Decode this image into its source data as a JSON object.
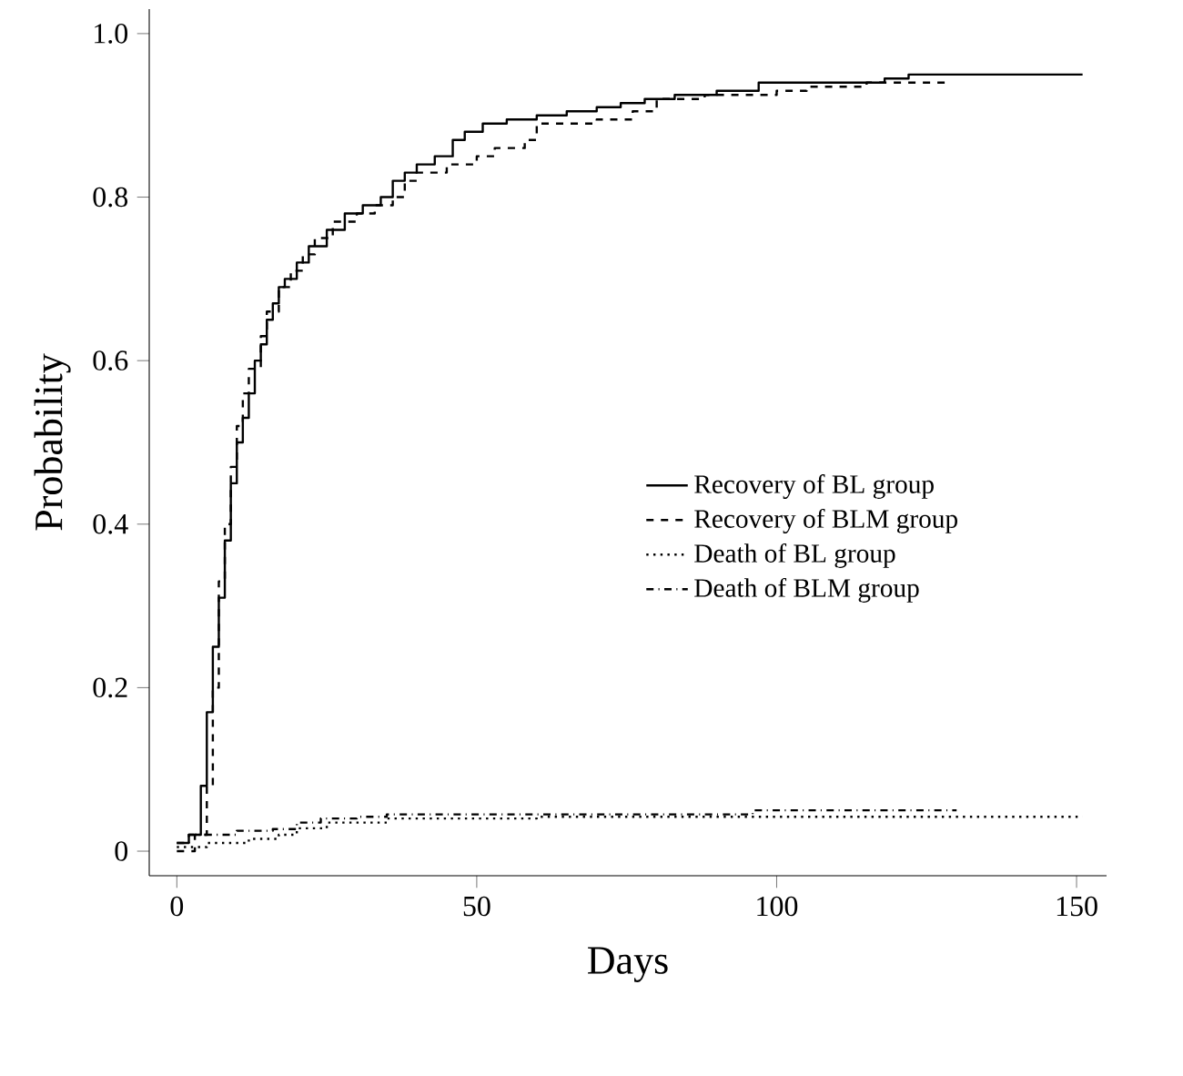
{
  "chart_data": {
    "type": "step",
    "xlabel": "Days",
    "ylabel": "Probability",
    "xlim": [
      -4.6,
      155
    ],
    "ylim": [
      -0.03,
      1.03
    ],
    "xticks": [
      0,
      50,
      100,
      150
    ],
    "yticks": [
      {
        "value": 0,
        "label": "0"
      },
      {
        "value": 0.2,
        "label": "0.2"
      },
      {
        "value": 0.4,
        "label": "0.4"
      },
      {
        "value": 0.6,
        "label": "0.6"
      },
      {
        "value": 0.8,
        "label": "0.8"
      },
      {
        "value": 1.0,
        "label": "1.0"
      }
    ],
    "grid": false,
    "legend": "right",
    "marker": "none",
    "series": [
      {
        "name": "Recovery of BL group",
        "color": "#000000",
        "line_style": "solid",
        "x": [
          0,
          2,
          4,
          5,
          6,
          7,
          8,
          9,
          10,
          11,
          12,
          13,
          14,
          15,
          16,
          17,
          18,
          20,
          22,
          25,
          28,
          31,
          34,
          36,
          38,
          40,
          43,
          46,
          48,
          51,
          55,
          60,
          65,
          70,
          74,
          78,
          83,
          90,
          97,
          118,
          122,
          151
        ],
        "values": [
          0.01,
          0.02,
          0.08,
          0.17,
          0.25,
          0.31,
          0.38,
          0.45,
          0.5,
          0.53,
          0.56,
          0.6,
          0.62,
          0.65,
          0.67,
          0.69,
          0.7,
          0.72,
          0.74,
          0.76,
          0.78,
          0.79,
          0.8,
          0.82,
          0.83,
          0.84,
          0.85,
          0.87,
          0.88,
          0.89,
          0.895,
          0.9,
          0.905,
          0.91,
          0.915,
          0.92,
          0.925,
          0.93,
          0.94,
          0.945,
          0.95,
          0.95
        ]
      },
      {
        "name": "Recovery of BLM group",
        "color": "#000000",
        "line_style": "dashed",
        "x": [
          0,
          3,
          5,
          6,
          7,
          8,
          9,
          10,
          11,
          12,
          14,
          15,
          17,
          19,
          21,
          23,
          26,
          30,
          33,
          36,
          38,
          40,
          45,
          50,
          53,
          58,
          60,
          70,
          76,
          80,
          88,
          100,
          105,
          115,
          129
        ],
        "values": [
          0.0,
          0.02,
          0.08,
          0.2,
          0.33,
          0.4,
          0.47,
          0.52,
          0.56,
          0.59,
          0.63,
          0.66,
          0.69,
          0.71,
          0.73,
          0.75,
          0.77,
          0.78,
          0.79,
          0.8,
          0.82,
          0.83,
          0.84,
          0.85,
          0.86,
          0.87,
          0.89,
          0.895,
          0.905,
          0.92,
          0.925,
          0.93,
          0.935,
          0.94,
          0.94
        ]
      },
      {
        "name": "Death of BL group",
        "color": "#000000",
        "line_style": "dotted",
        "x": [
          0,
          5,
          12,
          17,
          20,
          25,
          35,
          60,
          151
        ],
        "values": [
          0.005,
          0.01,
          0.015,
          0.02,
          0.028,
          0.035,
          0.04,
          0.042,
          0.042
        ]
      },
      {
        "name": "Death of BLM group",
        "color": "#000000",
        "line_style": "dashdot",
        "x": [
          0,
          2,
          10,
          16,
          20,
          24,
          30,
          35,
          96,
          130
        ],
        "values": [
          0.01,
          0.02,
          0.025,
          0.027,
          0.035,
          0.04,
          0.042,
          0.045,
          0.05,
          0.05
        ]
      }
    ]
  }
}
